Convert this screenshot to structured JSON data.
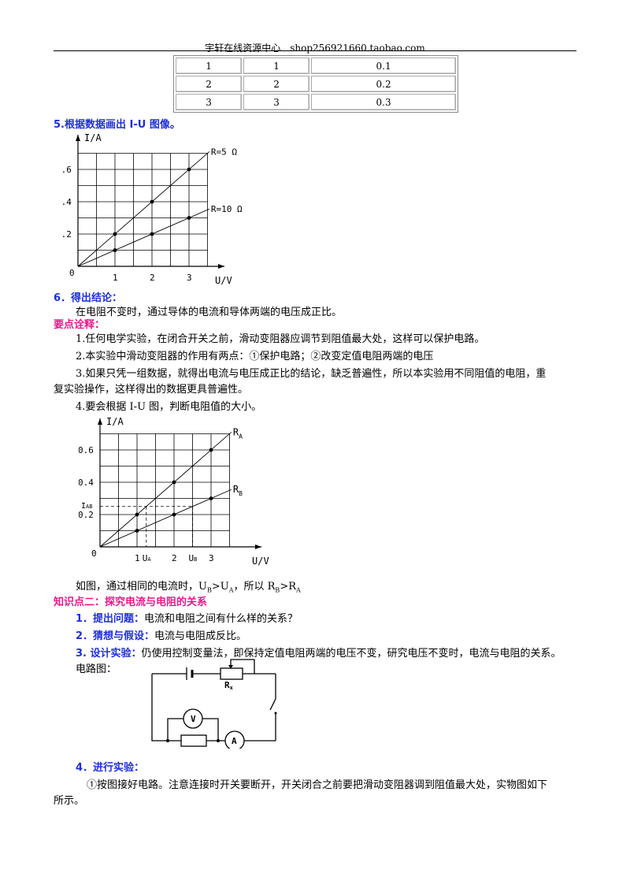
{
  "header": {
    "text": "宇轩在线资源中心　shop256921660.taobao.com"
  },
  "data_table": {
    "rows": [
      [
        "1",
        "1",
        "0.1"
      ],
      [
        "2",
        "2",
        "0.2"
      ],
      [
        "3",
        "3",
        "0.3"
      ]
    ]
  },
  "step5": {
    "title": "5.根据数据画出 I-U 图像。"
  },
  "chart_data": [
    {
      "type": "line",
      "xlabel": "U/V",
      "ylabel": "I/A",
      "origin_label": "0",
      "x_ticks": [
        "1",
        "2",
        "3"
      ],
      "y_ticks": [
        "0.2",
        "0.4",
        "0.6"
      ],
      "xlim": [
        0,
        3.5
      ],
      "ylim": [
        0,
        0.7
      ],
      "grid": true,
      "series": [
        {
          "name": "R=5 Ω",
          "points": [
            [
              1,
              0.2
            ],
            [
              2,
              0.4
            ],
            [
              3,
              0.6
            ]
          ]
        },
        {
          "name": "R=10 Ω",
          "points": [
            [
              1,
              0.1
            ],
            [
              2,
              0.2
            ],
            [
              3,
              0.3
            ]
          ]
        }
      ]
    },
    {
      "type": "line",
      "xlabel": "U/V",
      "ylabel": "I/A",
      "origin_label": "0",
      "x_ticks": [
        "1",
        "2",
        "3"
      ],
      "extra_x_labels": [
        "UA",
        "UB"
      ],
      "y_ticks": [
        "0.2",
        "0.4",
        "0.6"
      ],
      "extra_y_label": "IAB",
      "xlim": [
        0,
        3.5
      ],
      "ylim": [
        0,
        0.7
      ],
      "grid": true,
      "series": [
        {
          "name": "RA",
          "points": [
            [
              1,
              0.2
            ],
            [
              2,
              0.4
            ],
            [
              3,
              0.6
            ]
          ]
        },
        {
          "name": "RB",
          "points": [
            [
              1,
              0.1
            ],
            [
              2,
              0.2
            ],
            [
              3,
              0.3
            ]
          ]
        }
      ]
    }
  ],
  "step6": {
    "title": "6．得出结论：",
    "text": "在电阻不变时，通过导体的电流和导体两端的电压成正比。"
  },
  "key_points": {
    "title": "要点诠释：",
    "p1": "1.任何电学实验，在闭合开关之前，滑动变阻器应调节到阻值最大处，这样可以保护电路。",
    "p2": "2.本实验中滑动变阻器的作用有两点：①保护电路；②改变定值电阻两端的电压",
    "p3a": "3.如果只凭一组数据，就得出电流与电压成正比的结论，缺乏普遍性，所以本实验用不同阻值的电阻，重",
    "p3b": "复实验操作，这样得出的数据更具普遍性。",
    "p4": "4.要会根据 I-U 图，判断电阻值的大小。"
  },
  "chart2_caption": {
    "a": "如图，通过相同的电流时，U",
    "sub1": "B",
    "b": ">U",
    "sub2": "A",
    "c": "，所以 R",
    "sub3": "B",
    "d": ">R",
    "sub4": "A"
  },
  "section2": {
    "title": "知识点二：探究电流与电阻的关系",
    "q1_label": "1．提出问题：",
    "q1_text": "电流和电阻之间有什么样的关系？",
    "q2_label": "2．猜想与假设：",
    "q2_text": "电流与电阻成反比。",
    "q3_label": "3. 设计实验：",
    "q3_text": "仍使用控制变量法，即保持定值电阻两端的电压不变，研究电压不变时，电流与电阻的关系。",
    "circuit_label": "电路图：",
    "circuit": {
      "rx": "R",
      "rx_sub": "x",
      "r": "R",
      "voltmeter": "V",
      "ammeter": "A"
    },
    "q4_label": "4．进行实验：",
    "q4_text_a": "①按图接好电路。注意连接时开关要断开，开关闭合之前要把滑动变阻器调到阻值最大处，实物图如下",
    "q4_text_b": "所示。"
  }
}
